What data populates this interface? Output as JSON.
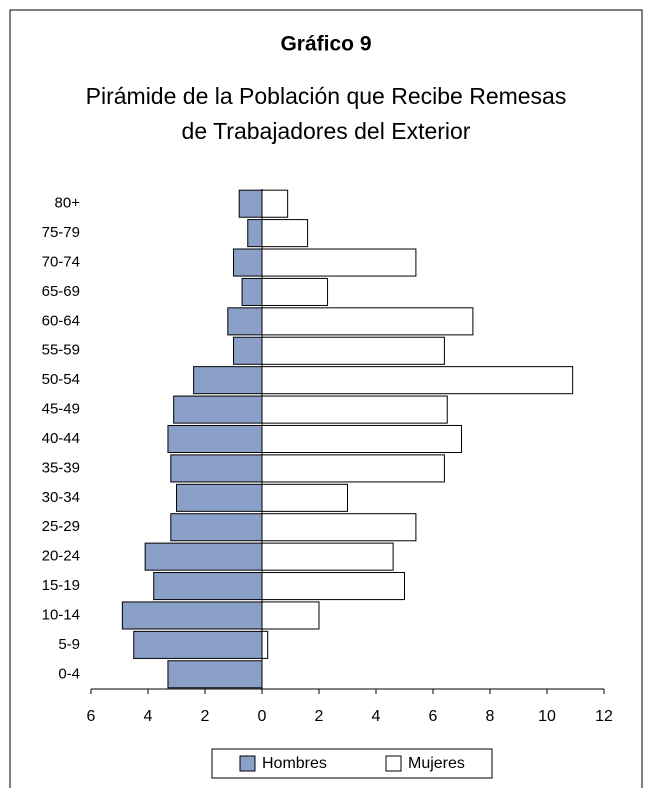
{
  "chart_data": {
    "type": "bar",
    "orientation": "horizontal",
    "title": "Gráfico 9",
    "subtitle": [
      "Pirámide de la Población que Recibe Remesas",
      "de Trabajadores del Exterior"
    ],
    "categories": [
      "80+",
      "75-79",
      "70-74",
      "65-69",
      "60-64",
      "55-59",
      "50-54",
      "45-49",
      "40-44",
      "35-39",
      "30-34",
      "25-29",
      "20-24",
      "15-19",
      "10-14",
      "5-9",
      "0-4"
    ],
    "series": [
      {
        "name": "Hombres",
        "color": "#8aa0c8",
        "values": [
          -0.8,
          -0.5,
          -1.0,
          -0.7,
          -1.2,
          -1.0,
          -2.4,
          -3.1,
          -3.3,
          -3.2,
          -3.0,
          -3.2,
          -4.1,
          -3.8,
          -4.9,
          -4.5,
          -3.3
        ]
      },
      {
        "name": "Mujeres",
        "color": "#ffffff",
        "values": [
          0.9,
          1.6,
          5.4,
          2.3,
          7.4,
          6.4,
          10.9,
          6.5,
          7.0,
          6.4,
          3.0,
          5.4,
          4.6,
          5.0,
          2.0,
          0.2,
          0
        ]
      }
    ],
    "xlim": [
      -6,
      12
    ],
    "xticks": [
      {
        "value": -6,
        "label": "6"
      },
      {
        "value": -4,
        "label": "4"
      },
      {
        "value": -2,
        "label": "2"
      },
      0,
      2,
      4,
      6,
      8,
      10,
      12
    ],
    "legend": "bottom"
  }
}
